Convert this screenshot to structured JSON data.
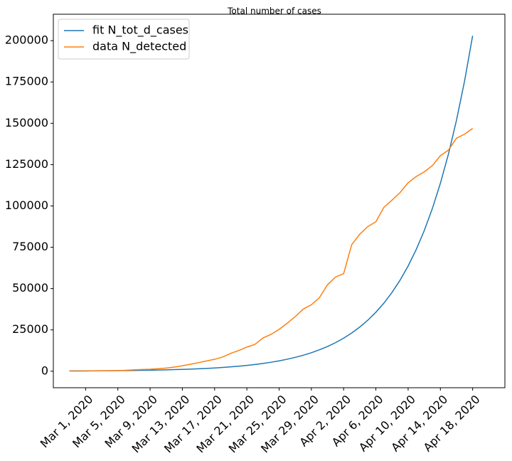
{
  "chart_data": {
    "type": "line",
    "title": "Total number of cases",
    "x": [
      "2020-02-28",
      "2020-02-29",
      "2020-03-01",
      "2020-03-02",
      "2020-03-03",
      "2020-03-04",
      "2020-03-05",
      "2020-03-06",
      "2020-03-07",
      "2020-03-08",
      "2020-03-09",
      "2020-03-10",
      "2020-03-11",
      "2020-03-12",
      "2020-03-13",
      "2020-03-14",
      "2020-03-15",
      "2020-03-16",
      "2020-03-17",
      "2020-03-18",
      "2020-03-19",
      "2020-03-20",
      "2020-03-21",
      "2020-03-22",
      "2020-03-23",
      "2020-03-24",
      "2020-03-25",
      "2020-03-26",
      "2020-03-27",
      "2020-03-28",
      "2020-03-29",
      "2020-03-30",
      "2020-03-31",
      "2020-04-01",
      "2020-04-02",
      "2020-04-03",
      "2020-04-04",
      "2020-04-05",
      "2020-04-06",
      "2020-04-07",
      "2020-04-08",
      "2020-04-09",
      "2020-04-10",
      "2020-04-11",
      "2020-04-12",
      "2020-04-13",
      "2020-04-14",
      "2020-04-15",
      "2020-04-16",
      "2020-04-17",
      "2020-04-18"
    ],
    "series": [
      {
        "name": "fit N_tot_d_cases",
        "color": "#1f77b4",
        "values": [
          145,
          167,
          193,
          223,
          258,
          298,
          345,
          399,
          461,
          533,
          616,
          712,
          823,
          951,
          1100,
          1272,
          1470,
          1699,
          1964,
          2271,
          2625,
          3034,
          3507,
          4054,
          4687,
          5418,
          6263,
          7240,
          8369,
          9675,
          11180,
          12930,
          14950,
          17280,
          19970,
          23090,
          26690,
          30850,
          35660,
          41220,
          47650,
          55080,
          63670,
          73600,
          85080,
          98350,
          113700,
          131400,
          151900,
          175600,
          203000
        ]
      },
      {
        "name": "data N_detected",
        "color": "#ff7f0e",
        "values": [
          50,
          80,
          120,
          160,
          200,
          260,
          350,
          530,
          800,
          1040,
          1200,
          1500,
          1900,
          2500,
          3300,
          4200,
          5200,
          6200,
          7200,
          8600,
          10800,
          12500,
          14600,
          16200,
          20100,
          22300,
          25300,
          29000,
          33000,
          37600,
          40200,
          44500,
          52300,
          57000,
          59000,
          76500,
          82900,
          87500,
          90400,
          99200,
          103500,
          108100,
          114000,
          117800,
          120600,
          124400,
          130400,
          133800,
          141000,
          143400,
          146900
        ]
      }
    ],
    "xlim": [
      "2020-02-26",
      "2020-04-22"
    ],
    "xticks": [
      {
        "value": "2020-03-01",
        "label": "Mar 1, 2020"
      },
      {
        "value": "2020-03-05",
        "label": "Mar 5, 2020"
      },
      {
        "value": "2020-03-09",
        "label": "Mar 9, 2020"
      },
      {
        "value": "2020-03-13",
        "label": "Mar 13, 2020"
      },
      {
        "value": "2020-03-17",
        "label": "Mar 17, 2020"
      },
      {
        "value": "2020-03-21",
        "label": "Mar 21, 2020"
      },
      {
        "value": "2020-03-25",
        "label": "Mar 25, 2020"
      },
      {
        "value": "2020-03-29",
        "label": "Mar 29, 2020"
      },
      {
        "value": "2020-04-02",
        "label": "Apr 2, 2020"
      },
      {
        "value": "2020-04-06",
        "label": "Apr 6, 2020"
      },
      {
        "value": "2020-04-10",
        "label": "Apr 10, 2020"
      },
      {
        "value": "2020-04-14",
        "label": "Apr 14, 2020"
      },
      {
        "value": "2020-04-18",
        "label": "Apr 18, 2020"
      }
    ],
    "ylim": [
      -10000,
      216000
    ],
    "yticks": [
      0,
      25000,
      50000,
      75000,
      100000,
      125000,
      150000,
      175000,
      200000
    ],
    "legend": "upper left"
  }
}
